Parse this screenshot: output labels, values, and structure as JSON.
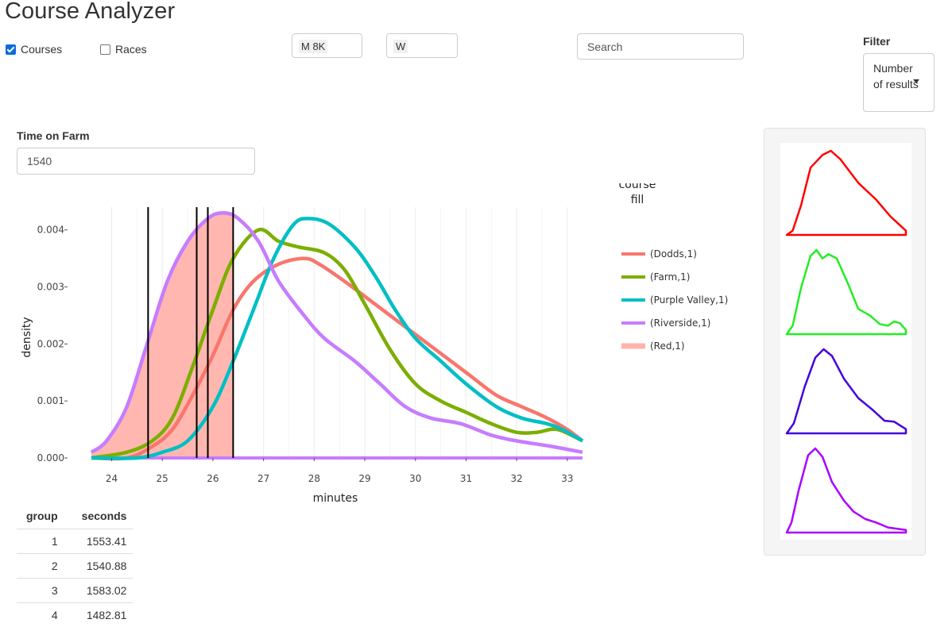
{
  "app": {
    "title": "Course Analyzer"
  },
  "toggles": {
    "courses": {
      "label": "Courses",
      "checked": true
    },
    "races": {
      "label": "Races",
      "checked": false
    }
  },
  "selects": {
    "division": {
      "value": "M 8K"
    },
    "gender": {
      "value": "W"
    }
  },
  "search": {
    "placeholder": "Search"
  },
  "filter": {
    "label": "Filter",
    "value": "Number of results"
  },
  "time_on_farm": {
    "label": "Time on Farm",
    "value": "1540"
  },
  "chart_data": {
    "type": "area",
    "xlabel": "minutes",
    "ylabel": "density",
    "xlim": [
      23.6,
      33.3
    ],
    "ylim": [
      0,
      0.0044
    ],
    "x_ticks": [
      24,
      25,
      26,
      27,
      28,
      29,
      30,
      31,
      32,
      33
    ],
    "y_ticks": [
      {
        "v": 0.0,
        "label": "0.000"
      },
      {
        "v": 0.001,
        "label": "0.001"
      },
      {
        "v": 0.002,
        "label": "0.002"
      },
      {
        "v": 0.003,
        "label": "0.003"
      },
      {
        "v": 0.004,
        "label": "0.004"
      }
    ],
    "legend_title": "course\nfill",
    "legend_position": "right",
    "grid": true,
    "vlines": [
      24.72,
      25.68,
      25.9,
      26.4
    ],
    "fill_until": 26.4,
    "series": [
      {
        "name": "(Dodds,1)",
        "color": "#f8766d",
        "points": [
          [
            23.6,
            0
          ],
          [
            24.3,
            0
          ],
          [
            24.8,
            0.0002
          ],
          [
            25.2,
            0.0005
          ],
          [
            25.6,
            0.0011
          ],
          [
            26.0,
            0.0018
          ],
          [
            26.4,
            0.0026
          ],
          [
            26.8,
            0.0031
          ],
          [
            27.3,
            0.0034
          ],
          [
            27.8,
            0.0035
          ],
          [
            28.1,
            0.0034
          ],
          [
            28.6,
            0.0031
          ],
          [
            29.2,
            0.0027
          ],
          [
            29.8,
            0.0023
          ],
          [
            30.4,
            0.0019
          ],
          [
            31.0,
            0.0015
          ],
          [
            31.6,
            0.0011
          ],
          [
            32.1,
            0.0009
          ],
          [
            32.6,
            0.0007
          ],
          [
            33.0,
            0.0005
          ],
          [
            33.3,
            0.0003
          ]
        ]
      },
      {
        "name": "(Farm,1)",
        "color": "#7cae00",
        "points": [
          [
            23.6,
            0
          ],
          [
            24.3,
            0.0001
          ],
          [
            24.8,
            0.0003
          ],
          [
            25.2,
            0.0007
          ],
          [
            25.6,
            0.0016
          ],
          [
            26.0,
            0.0026
          ],
          [
            26.4,
            0.0035
          ],
          [
            26.9,
            0.004
          ],
          [
            27.3,
            0.0038
          ],
          [
            27.7,
            0.0037
          ],
          [
            28.2,
            0.0036
          ],
          [
            28.6,
            0.0033
          ],
          [
            29.0,
            0.0027
          ],
          [
            29.5,
            0.0019
          ],
          [
            30.0,
            0.0013
          ],
          [
            30.5,
            0.001
          ],
          [
            31.0,
            0.0008
          ],
          [
            31.5,
            0.0006
          ],
          [
            32.0,
            0.00045
          ],
          [
            32.4,
            0.00045
          ],
          [
            32.8,
            0.0005
          ],
          [
            33.3,
            0.0003
          ]
        ]
      },
      {
        "name": "(Purple Valley,1)",
        "color": "#00bfc4",
        "points": [
          [
            23.6,
            0
          ],
          [
            24.5,
            0
          ],
          [
            25.0,
            0.0001
          ],
          [
            25.5,
            0.0003
          ],
          [
            26.0,
            0.0009
          ],
          [
            26.4,
            0.0017
          ],
          [
            26.8,
            0.0026
          ],
          [
            27.2,
            0.0035
          ],
          [
            27.6,
            0.0041
          ],
          [
            27.9,
            0.0042
          ],
          [
            28.3,
            0.0041
          ],
          [
            28.8,
            0.0037
          ],
          [
            29.2,
            0.0032
          ],
          [
            29.6,
            0.0026
          ],
          [
            30.0,
            0.0021
          ],
          [
            30.5,
            0.0017
          ],
          [
            31.0,
            0.0013
          ],
          [
            31.6,
            0.0009
          ],
          [
            32.1,
            0.0007
          ],
          [
            32.6,
            0.0006
          ],
          [
            32.9,
            0.0005
          ],
          [
            33.3,
            0.0003
          ]
        ]
      },
      {
        "name": "(Riverside,1)",
        "color": "#c77cff",
        "points": [
          [
            23.6,
            0.0001
          ],
          [
            23.9,
            0.0003
          ],
          [
            24.3,
            0.0009
          ],
          [
            24.7,
            0.002
          ],
          [
            25.1,
            0.0031
          ],
          [
            25.5,
            0.0038
          ],
          [
            25.9,
            0.0042
          ],
          [
            26.2,
            0.0043
          ],
          [
            26.5,
            0.0042
          ],
          [
            26.9,
            0.0038
          ],
          [
            27.3,
            0.0031
          ],
          [
            27.8,
            0.0025
          ],
          [
            28.2,
            0.0021
          ],
          [
            28.8,
            0.0017
          ],
          [
            29.3,
            0.0013
          ],
          [
            29.8,
            0.0009
          ],
          [
            30.3,
            0.0007
          ],
          [
            30.9,
            0.0006
          ],
          [
            31.5,
            0.0004
          ],
          [
            32.0,
            0.0003
          ],
          [
            32.7,
            0.0002
          ],
          [
            33.3,
            0.0001
          ]
        ]
      }
    ],
    "fill_series": {
      "name": "(Red,1)",
      "color": "#ffb3ab"
    }
  },
  "results_table": {
    "columns": [
      "group",
      "seconds"
    ],
    "rows": [
      [
        "1",
        "1553.41"
      ],
      [
        "2",
        "1540.88"
      ],
      [
        "3",
        "1583.02"
      ],
      [
        "4",
        "1482.81"
      ]
    ]
  },
  "mini_plots": [
    {
      "color": "#ff0000",
      "points": [
        [
          0,
          0
        ],
        [
          0.05,
          0.05
        ],
        [
          0.12,
          0.35
        ],
        [
          0.2,
          0.8
        ],
        [
          0.3,
          0.95
        ],
        [
          0.37,
          1.0
        ],
        [
          0.45,
          0.9
        ],
        [
          0.6,
          0.62
        ],
        [
          0.75,
          0.42
        ],
        [
          0.87,
          0.22
        ],
        [
          1,
          0.05
        ],
        [
          1,
          0
        ]
      ]
    },
    {
      "color": "#22ee22",
      "points": [
        [
          0,
          0
        ],
        [
          0.05,
          0.1
        ],
        [
          0.12,
          0.55
        ],
        [
          0.2,
          0.93
        ],
        [
          0.25,
          1.0
        ],
        [
          0.3,
          0.9
        ],
        [
          0.35,
          0.95
        ],
        [
          0.42,
          0.9
        ],
        [
          0.52,
          0.58
        ],
        [
          0.6,
          0.3
        ],
        [
          0.7,
          0.22
        ],
        [
          0.78,
          0.12
        ],
        [
          0.85,
          0.1
        ],
        [
          0.9,
          0.15
        ],
        [
          0.95,
          0.13
        ],
        [
          1,
          0.05
        ],
        [
          1,
          0
        ]
      ]
    },
    {
      "color": "#4400dd",
      "points": [
        [
          0,
          0
        ],
        [
          0.06,
          0.12
        ],
        [
          0.15,
          0.55
        ],
        [
          0.24,
          0.9
        ],
        [
          0.31,
          1.0
        ],
        [
          0.38,
          0.92
        ],
        [
          0.48,
          0.65
        ],
        [
          0.6,
          0.42
        ],
        [
          0.72,
          0.28
        ],
        [
          0.82,
          0.15
        ],
        [
          0.9,
          0.14
        ],
        [
          1,
          0.05
        ],
        [
          1,
          0
        ]
      ]
    },
    {
      "color": "#aa00ff",
      "points": [
        [
          0,
          0
        ],
        [
          0.04,
          0.12
        ],
        [
          0.1,
          0.5
        ],
        [
          0.18,
          0.92
        ],
        [
          0.24,
          1.0
        ],
        [
          0.3,
          0.9
        ],
        [
          0.38,
          0.6
        ],
        [
          0.48,
          0.38
        ],
        [
          0.56,
          0.25
        ],
        [
          0.66,
          0.16
        ],
        [
          0.75,
          0.12
        ],
        [
          0.85,
          0.06
        ],
        [
          1,
          0.03
        ],
        [
          1,
          0
        ]
      ]
    }
  ]
}
